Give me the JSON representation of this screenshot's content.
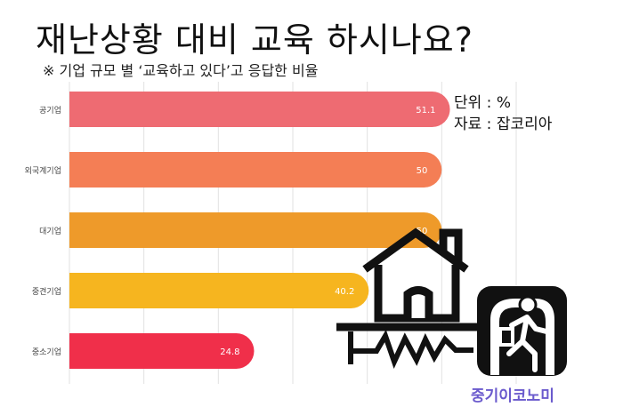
{
  "title": "재난상황 대비 교육 하시나요?",
  "subtitle": "※ 기업 규모 별 ‘교육하고 있다’고 응답한 비율",
  "unit_label": "단위 : %",
  "source_label": "자료 : 잡코리아",
  "brand": "중기이코노미",
  "icons": [
    "house-icon",
    "earthquake-crack-icon",
    "emergency-exit-icon"
  ],
  "chart_data": {
    "type": "bar",
    "orientation": "horizontal",
    "categories": [
      "공기업",
      "외국계기업",
      "대기업",
      "중견기업",
      "중소기업"
    ],
    "values": [
      51.1,
      50,
      50,
      40.2,
      24.8
    ],
    "colors": [
      "#ee6b72",
      "#f47e55",
      "#ee9a2a",
      "#f6b51f",
      "#f02f4a"
    ],
    "xlim": [
      0,
      60
    ],
    "grid": true
  }
}
